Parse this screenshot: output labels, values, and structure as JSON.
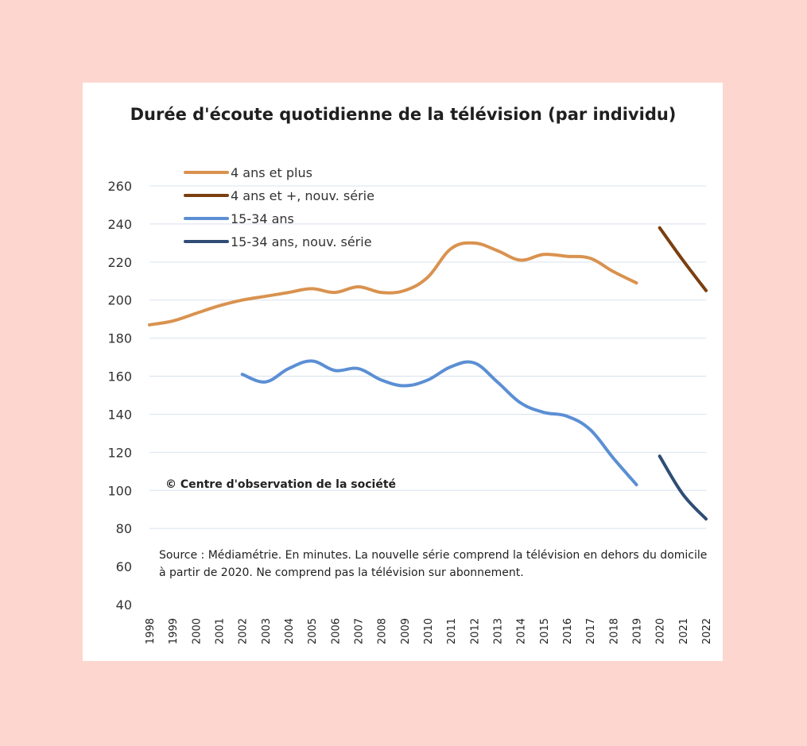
{
  "chart_data": {
    "type": "line",
    "title": "Durée d'écoute quotidienne de la télévision (par individu)",
    "xlabel": "",
    "ylabel": "",
    "ylim": [
      40,
      260
    ],
    "yticks": [
      40,
      60,
      80,
      100,
      120,
      140,
      160,
      180,
      200,
      220,
      240,
      260
    ],
    "categories": [
      "1998",
      "1999",
      "2000",
      "2001",
      "2002",
      "2003",
      "2004",
      "2005",
      "2006",
      "2007",
      "2008",
      "2009",
      "2010",
      "2011",
      "2012",
      "2013",
      "2014",
      "2015",
      "2016",
      "2017",
      "2018",
      "2019",
      "2020",
      "2021",
      "2022"
    ],
    "grid": true,
    "legend_position": "top-left",
    "series": [
      {
        "name": "4 ans et plus",
        "color": "#d9924f",
        "values": [
          187,
          189,
          193,
          197,
          200,
          202,
          204,
          206,
          204,
          207,
          204,
          205,
          212,
          227,
          230,
          226,
          221,
          224,
          223,
          222,
          215,
          209,
          null,
          null,
          null
        ]
      },
      {
        "name": "4 ans et +, nouv. série",
        "color": "#7b3f10",
        "values": [
          null,
          null,
          null,
          null,
          null,
          null,
          null,
          null,
          null,
          null,
          null,
          null,
          null,
          null,
          null,
          null,
          null,
          null,
          null,
          null,
          null,
          null,
          238,
          221,
          205
        ]
      },
      {
        "name": "15-34 ans",
        "color": "#5b8fd4",
        "values": [
          null,
          null,
          null,
          null,
          161,
          157,
          164,
          168,
          163,
          164,
          158,
          155,
          158,
          165,
          167,
          157,
          146,
          141,
          139,
          132,
          117,
          103,
          null,
          null,
          null
        ]
      },
      {
        "name": "15-34 ans, nouv. série",
        "color": "#2f4d75",
        "values": [
          null,
          null,
          null,
          null,
          null,
          null,
          null,
          null,
          null,
          null,
          null,
          null,
          null,
          null,
          null,
          null,
          null,
          null,
          null,
          null,
          null,
          null,
          118,
          98,
          85
        ]
      }
    ],
    "annotations": [
      "© Centre d'observation de la société"
    ],
    "source_note": "Source : Médiamétrie. En minutes. La nouvelle série comprend la télévision en dehors du domicile à partir de 2020. Ne comprend pas la télévision sur abonnement."
  }
}
